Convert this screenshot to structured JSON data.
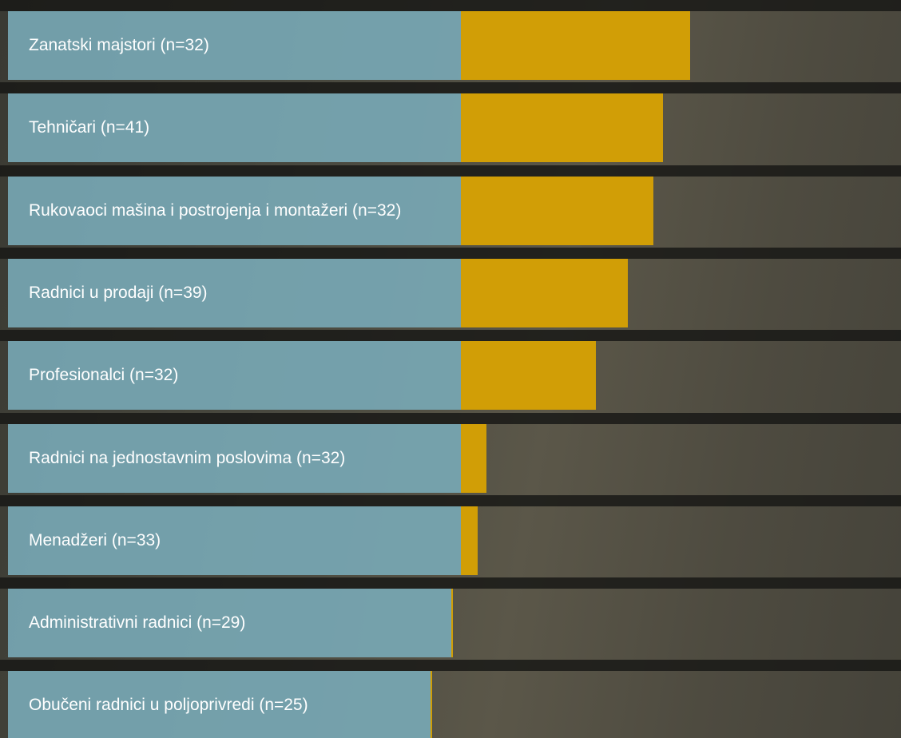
{
  "chart_data": {
    "type": "bar",
    "orientation": "horizontal",
    "categories": [
      "Zanatski majstori (n=32)",
      "Tehničari (n=41)",
      "Rukovaoci mašina i postrojenja i montažeri (n=32)",
      "Radnici u prodaji (n=39)",
      "Profesionalci (n=32)",
      "Radnici na jednostavnim poslovima (n=32)",
      "Menadžeri (n=33)",
      "Administrativni radnici (n=29)",
      "Obučeni radnici u poljoprivredi (n=25)"
    ],
    "values": [
      28.7,
      25.3,
      24.1,
      20.9,
      16.9,
      3.2,
      2.1,
      -1.1,
      -3.7
    ],
    "color": "#d19e06",
    "label_color": "#7aacba",
    "xlim": [
      -56.7,
      55.1
    ]
  }
}
